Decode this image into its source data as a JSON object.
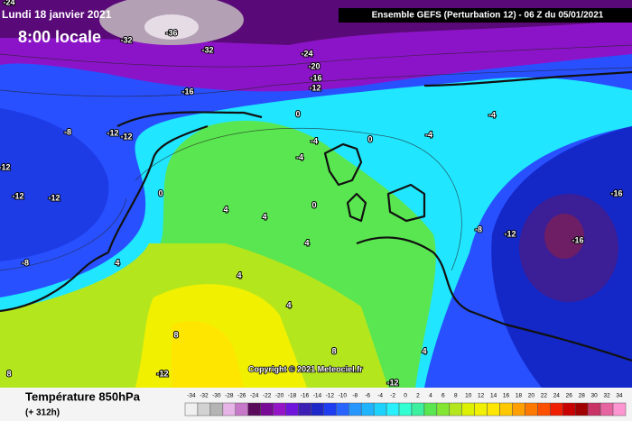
{
  "header": {
    "date": "Lundi 18 janvier 2021",
    "time": "8:00 locale",
    "run": "Ensemble GEFS  (Perturbation 12)  - 06 Z du 05/01/2021"
  },
  "map": {
    "copyright": "Copyright © 2021 Meteociel.fr",
    "contour_labels": [
      -24,
      -36,
      -32,
      -32,
      -24,
      -20,
      -16,
      -12,
      -16,
      -8,
      -12,
      -12,
      -12,
      -12,
      -12,
      0,
      -4,
      0,
      -4,
      -4,
      0,
      4,
      4,
      4,
      -8,
      4,
      4,
      4,
      8,
      8,
      -12,
      -16,
      -16,
      -8,
      -12,
      8,
      4,
      -12,
      -4,
      0
    ]
  },
  "footer": {
    "title": "Température 850hPa",
    "lead": "(+ 312h)"
  },
  "legend": {
    "labels": [
      -34,
      -32,
      -30,
      -28,
      -26,
      -24,
      -22,
      -20,
      -18,
      -16,
      -14,
      -12,
      -10,
      -8,
      -6,
      -4,
      -2,
      0,
      2,
      4,
      6,
      8,
      10,
      12,
      14,
      16,
      18,
      20,
      22,
      24,
      26,
      28,
      30,
      32,
      34
    ],
    "colors": [
      "#f0f0f0",
      "#d2d2d2",
      "#b4b4b4",
      "#e6b4e6",
      "#c878c8",
      "#5a0a5a",
      "#780a96",
      "#9614c8",
      "#6e14dc",
      "#3c1eb4",
      "#1e28c8",
      "#1e3cf0",
      "#2864ff",
      "#2896ff",
      "#20b4ff",
      "#1ed2ff",
      "#28f0ff",
      "#32ffd2",
      "#3cf0a0",
      "#5ae650",
      "#82e632",
      "#b4e61e",
      "#dcf000",
      "#f0f000",
      "#ffe600",
      "#ffc800",
      "#ffa000",
      "#ff7800",
      "#ff5000",
      "#f01e00",
      "#c80000",
      "#a00000",
      "#c83264",
      "#e664a0",
      "#ff96d2"
    ]
  }
}
